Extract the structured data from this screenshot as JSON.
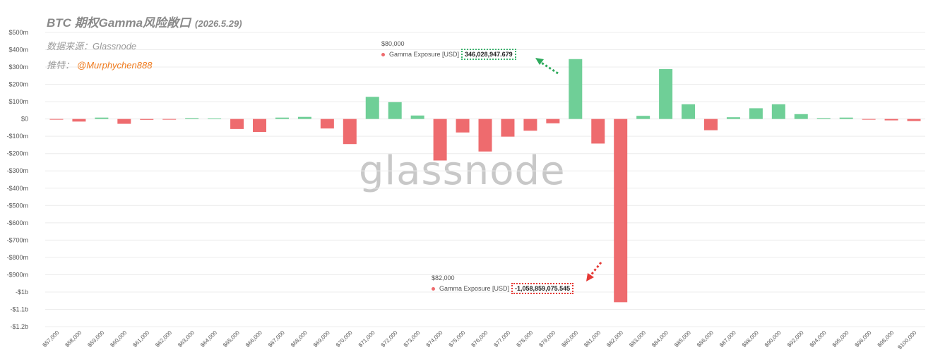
{
  "header": {
    "title": "BTC 期权Gamma风险敞口",
    "date": "(2026.5.29)",
    "source": "数据来源：Glassnode",
    "twitter_label": "推特：",
    "twitter_handle": "@Murphychen888"
  },
  "watermark": "glassnode",
  "tooltips": [
    {
      "category": "$80,000",
      "series": "Gamma Exposure [USD]",
      "value": "346,028,947.679"
    },
    {
      "category": "$82,000",
      "series": "Gamma Exposure [USD]",
      "value": "-1,058,859,075.545"
    }
  ],
  "colors": {
    "positive": "#6fcf97",
    "negative": "#ee6b6e",
    "grid": "#ececec",
    "axis_text": "#555555"
  },
  "chart_data": {
    "type": "bar",
    "title": "BTC 期权Gamma风险敞口",
    "series": [
      {
        "name": "Gamma Exposure [USD]"
      }
    ],
    "ylim": [
      -1200000000,
      500000000
    ],
    "y_ticks": [
      "$500m",
      "$400m",
      "$300m",
      "$200m",
      "$100m",
      "$0",
      "-$100m",
      "-$200m",
      "-$300m",
      "-$400m",
      "-$500m",
      "-$600m",
      "-$700m",
      "-$800m",
      "-$900m",
      "-$1b",
      "-$1.1b",
      "-$1.2b"
    ],
    "grid": true,
    "categories": [
      "$57,000",
      "$58,000",
      "$59,000",
      "$60,000",
      "$61,000",
      "$62,000",
      "$63,000",
      "$64,000",
      "$65,000",
      "$66,000",
      "$67,000",
      "$68,000",
      "$69,000",
      "$70,000",
      "$71,000",
      "$72,000",
      "$73,000",
      "$74,000",
      "$75,000",
      "$76,000",
      "$77,000",
      "$78,000",
      "$79,000",
      "$80,000",
      "$81,000",
      "$82,000",
      "$83,000",
      "$84,000",
      "$85,000",
      "$86,000",
      "$87,000",
      "$88,000",
      "$90,000",
      "$92,000",
      "$94,000",
      "$95,000",
      "$96,000",
      "$98,000",
      "$100,000"
    ],
    "values": [
      -2000000,
      -15000000,
      8000000,
      -28000000,
      -5000000,
      -4000000,
      5000000,
      3000000,
      -58000000,
      -75000000,
      8000000,
      12000000,
      -55000000,
      -145000000,
      128000000,
      97000000,
      20000000,
      -240000000,
      -78000000,
      -188000000,
      -102000000,
      -68000000,
      -25000000,
      346028947.679,
      -142000000,
      -1058859075.545,
      18000000,
      288000000,
      85000000,
      -65000000,
      10000000,
      62000000,
      85000000,
      28000000,
      5000000,
      8000000,
      -3000000,
      -8000000,
      -12000000
    ]
  }
}
